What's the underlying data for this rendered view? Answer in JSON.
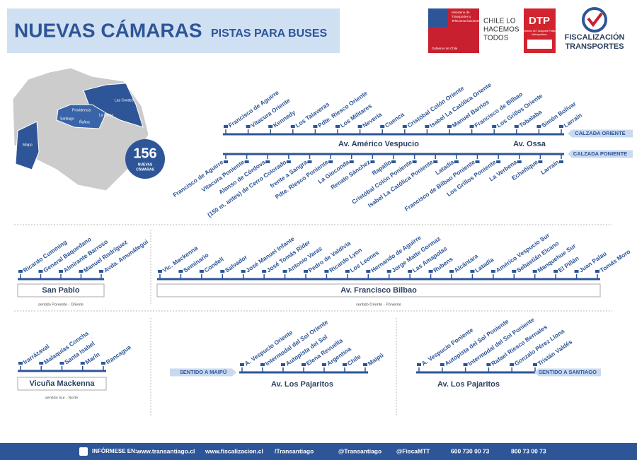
{
  "header": {
    "title": "NUEVAS CÁMARAS",
    "subtitle": "PISTAS PARA BUSES"
  },
  "logos": {
    "gob_lines": [
      "Ministerio de",
      "Transportes y",
      "Telecomunicaciones"
    ],
    "gob_footer": "Gobierno de Chile",
    "slogan": [
      "CHILE LO",
      "HACEMOS",
      "TODOS"
    ],
    "dtp": "DTP",
    "dtp_sub": [
      "Directorio de Transporte Público",
      "Metropolitano"
    ],
    "fisca": [
      "FISCALIZACIÓN",
      "TRANSPORTES"
    ]
  },
  "map": {
    "communes": [
      "Las Condes",
      "Providencia",
      "Santiago",
      "Ñuñoa",
      "La Reina",
      "Maipú"
    ],
    "badge_count": 156,
    "badge_label": [
      "NUEVAS",
      "CÁMARAS"
    ]
  },
  "americo": {
    "name": "Av. Américo Vespucio",
    "name2": "Av. Ossa",
    "oriente": {
      "label": "CALZADA ORIENTE",
      "stops": [
        "Francisco de Aguirre",
        "Vitacura Oriente",
        "Kennedy",
        "Los Talaveras",
        "Pdte. Riesco Oriente",
        "Los Militares",
        "Nevería",
        "Cuenca",
        "Cristóbal Colón Oriente",
        "Isabel La Católica Oriente",
        "Manuel Barrios",
        "Francisco de Bilbao",
        "Los Grillos Oriente",
        "Tobalaba",
        "Simón Bolívar",
        "Larraín"
      ]
    },
    "poniente": {
      "label": "CALZADA PONIENTE",
      "stops": [
        "Francisco de Aguirre",
        "Vitacura Poniente",
        "Alonso de Córdova",
        "(150 m. antes) de Cerro Colorado",
        "frente a Sangra",
        "Pdte. Riesco Poniente",
        "La Gioconda",
        "Renato Sánchez",
        "Rapallo",
        "Cristóbal Colón Poniente",
        "Isabel La Católica Poniente",
        "Latadía",
        "Francisco de Bilbao Poniente",
        "Los Grillos Poniente",
        "La Verbena",
        "Echeñique",
        "Larraín"
      ]
    }
  },
  "san_pablo": {
    "name": "San Pablo",
    "note": "sentido Poniente - Oriente",
    "stops": [
      "Ricardo Cumming",
      "General Baquedano",
      "Almirante Barroso",
      "Manuel Rodríguez",
      "Avda. Amunátegui"
    ]
  },
  "bilbao": {
    "name": "Av. Francisco Bilbao",
    "note": "sentido Oriente - Poniente",
    "stops": [
      "Vic. Mackenna",
      "Seminario",
      "Condell",
      "Salvador",
      "José Manuel Infante",
      "José Tomás Rider",
      "Antonio Varas",
      "Pedro de Valdivia",
      "Ricardo Lyon",
      "Los Leones",
      "Hernando de Aguirre",
      "Jorge Matte Gormaz",
      "Las Amapolas",
      "Rubens",
      "Alcántara",
      "Latadía",
      "Américo Vespucio Sur",
      "Sebastián Elcano",
      "Manquehue Sur",
      "El Pillán",
      "Juan Palau",
      "Tomás Moro"
    ]
  },
  "vicuna": {
    "name": "Vicuña Mackenna",
    "note": "sentido Sur - Norte",
    "stops": [
      "Irarrázaval",
      "Malaquías Concha",
      "Santa Isabel",
      "Marín",
      "Rancagua"
    ]
  },
  "pajaritos_maipu": {
    "name": "Av. Los Pajaritos",
    "direction": "SENTIDO A MAIPÚ",
    "stops": [
      "A. Vespucio Oriente",
      "Intermodal del Sol Oriente",
      "Autopista del Sol",
      "Elena Revuelta",
      "Argentina",
      "Chile",
      "Maipú"
    ]
  },
  "pajaritos_santiago": {
    "name": "Av. Los Pajaritos",
    "direction": "SENTIDO A SANTIAGO",
    "stops": [
      "A. Vespucio Poniente",
      "Autopista del Sol Poniente",
      "Intermodal del Sol Poniente",
      "Rafael Riesco Bernales",
      "Gonzalo Pérez Llona",
      "Tristán Valdés"
    ]
  },
  "footer": {
    "label": "INFÓRMESE EN:",
    "items": [
      "www.transantiago.cl",
      "www.fiscalizacion.cl",
      "/Transantiago",
      "@Transantiago",
      "@FiscaMTT",
      "600 730 00 73",
      "800 73 00 73"
    ]
  }
}
